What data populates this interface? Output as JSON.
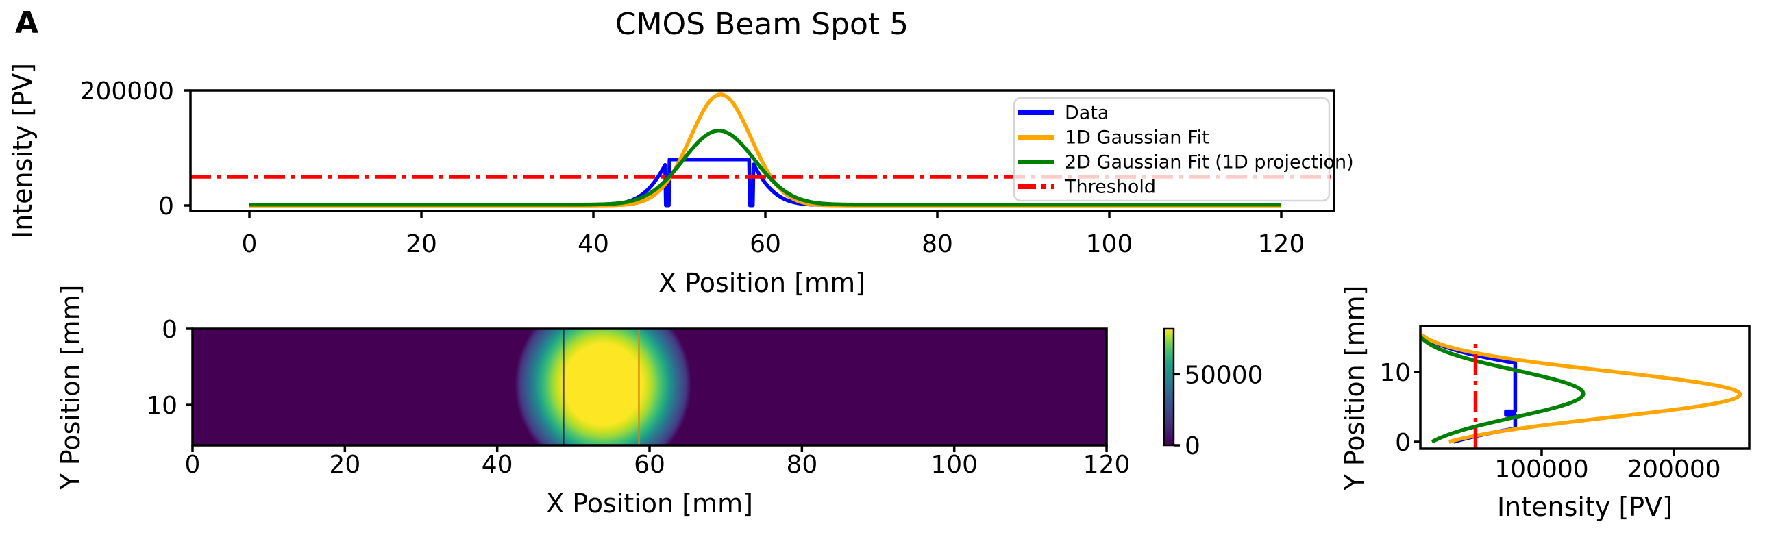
{
  "panel_label": "A",
  "title": "CMOS Beam Spot 5",
  "colors": {
    "data_line": "#0000ff",
    "fit_1d_line": "#ffa500",
    "fit_2d_line": "#008000",
    "threshold_line": "#ff0000",
    "axes": "#000000",
    "background": "#ffffff",
    "legend_border": "#d5d5d5",
    "viridis_low": "#440154",
    "viridis_high": "#fde725"
  },
  "legend": {
    "position": "upper right",
    "entries": [
      "Data",
      "1D Gaussian Fit",
      "2D Gaussian Fit (1D projection)",
      "Threshold"
    ]
  },
  "chart_data": [
    {
      "id": "x_profile",
      "type": "line",
      "xlabel": "X Position [mm]",
      "ylabel": "Intensity [PV]",
      "xlim": [
        -6.9,
        126.1
      ],
      "ylim": [
        -9500,
        200000
      ],
      "xticks": [
        0,
        20,
        40,
        60,
        80,
        100,
        120
      ],
      "yticks": [
        0,
        200000
      ],
      "grid": false,
      "series": [
        {
          "name": "Data",
          "color": "#0000ff",
          "kind": "gaussian",
          "pos_range": [
            0,
            120
          ],
          "amplitude": 195000,
          "center": 53.5,
          "sigma": 3.6,
          "baseline": 800,
          "clip": 80000,
          "dead_positions": [
            48.6,
            58.35
          ],
          "dead_width": 0.4,
          "dead_value": 300,
          "displayed_plateau": 80000
        },
        {
          "name": "1D Gaussian Fit",
          "color": "#ffa500",
          "kind": "gaussian",
          "pos_range": [
            0,
            120
          ],
          "amplitude": 193000,
          "center": 54.8,
          "sigma": 3.55,
          "baseline": 0
        },
        {
          "name": "2D Gaussian Fit (1D projection)",
          "color": "#008000",
          "kind": "gaussian",
          "pos_range": [
            0,
            120
          ],
          "amplitude": 128500,
          "center": 54.6,
          "sigma": 4.15,
          "baseline": 1500
        },
        {
          "name": "Threshold",
          "color": "#ff0000",
          "kind": "hline",
          "value": 50000,
          "linestyle": "dashdot"
        }
      ]
    },
    {
      "id": "beam_image",
      "type": "heatmap",
      "xlabel": "X Position [mm]",
      "ylabel": "Y Position [mm]",
      "xlim": [
        0,
        120
      ],
      "ylim": [
        15.3,
        0
      ],
      "xticks": [
        0,
        20,
        40,
        60,
        80,
        100,
        120
      ],
      "yticks": [
        0,
        10
      ],
      "colormap": "viridis",
      "beam_spot": {
        "center_x_mm": 53.9,
        "center_y_mm": 7.3,
        "core_radius_x_mm": 4.7,
        "core_radius_y_mm": 5.9,
        "halo_radius_x_mm": 11.6,
        "halo_radius_y_mm": 12.0
      },
      "artifact_columns": [
        {
          "x_mm": 48.7,
          "appearance": "dark"
        },
        {
          "x_mm": 58.6,
          "appearance": "hot-orange"
        }
      ],
      "colorbar": {
        "ticks": [
          0,
          50000
        ],
        "vmin": 0,
        "vmax": 82000
      }
    },
    {
      "id": "y_profile",
      "type": "line",
      "orientation": "value-on-x",
      "xlabel": "Intensity [PV]",
      "ylabel": "Y Position [mm]",
      "xlim": [
        8300,
        258000
      ],
      "ylim": [
        -1.0,
        16.3
      ],
      "xticks": [
        100000,
        200000
      ],
      "yticks": [
        0,
        10
      ],
      "series": [
        {
          "name": "Data",
          "color": "#0000ff",
          "kind": "gaussian",
          "pos_range": [
            0,
            15.3
          ],
          "amplitude": 195000,
          "center": 6.6,
          "sigma": 3.5,
          "baseline": 600,
          "clip": 80000,
          "dead_positions": [
            4.1
          ],
          "dead_width": 0.5,
          "dead_value": 73000,
          "displayed_plateau": 80000
        },
        {
          "name": "1D Gaussian Fit",
          "color": "#ffa500",
          "kind": "gaussian",
          "pos_range": [
            0,
            15.3
          ],
          "amplitude": 250000,
          "center": 6.8,
          "sigma": 3.3,
          "baseline": 0
        },
        {
          "name": "2D Gaussian Fit (1D projection)",
          "color": "#008000",
          "kind": "gaussian",
          "pos_range": [
            0,
            15.3
          ],
          "amplitude": 130000,
          "center": 6.9,
          "sigma": 3.35,
          "baseline": 1500
        },
        {
          "name": "Threshold",
          "color": "#ff0000",
          "kind": "vline",
          "value": 50000,
          "linestyle": "dashdot",
          "span_mm": [
            -0.98,
            14.7
          ]
        }
      ]
    }
  ]
}
